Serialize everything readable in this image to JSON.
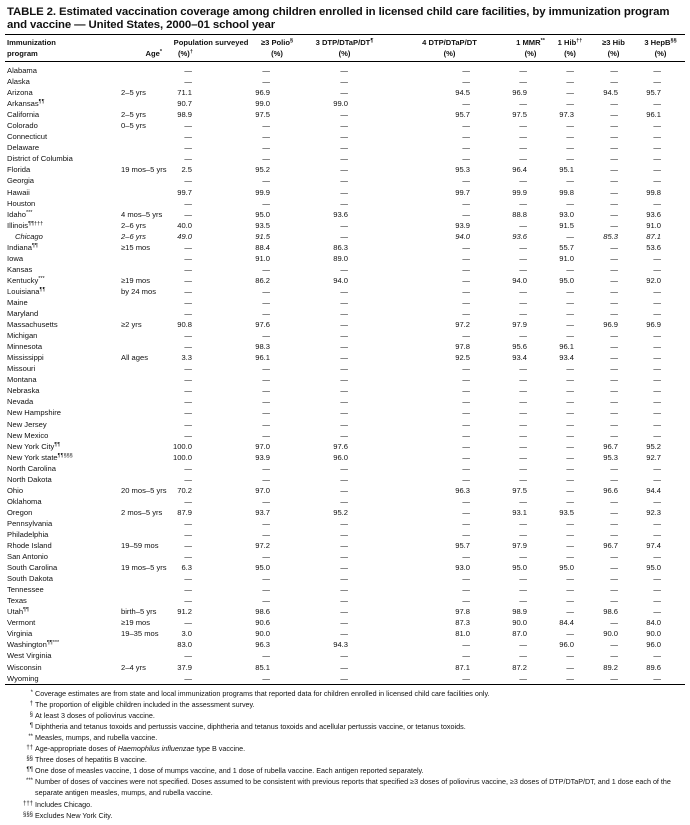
{
  "title": "TABLE 2. Estimated vaccination coverage among children enrolled in licensed child care facilities, by immunization program and vaccine — United States, 2000–01 school year",
  "headers": [
    {
      "l1": "Immunization",
      "l2": "program"
    },
    {
      "l1": "",
      "l2": "Age",
      "sup2": "*"
    },
    {
      "l1": "Population surveyed",
      "l2": "(%)",
      "sup2": "†"
    },
    {
      "l1": "≥3 Polio",
      "sup1": "§",
      "l2": "(%)"
    },
    {
      "l1": "3 DTP/DTaP/DT",
      "sup1": "¶",
      "l2": "(%)"
    },
    {
      "l1": "4 DTP/DTaP/DT",
      "l2": "(%)"
    },
    {
      "l1": "1 MMR",
      "sup1": "**",
      "l2": "(%)"
    },
    {
      "l1": "1 Hib",
      "sup1": "††",
      "l2": "(%)"
    },
    {
      "l1": "≥3 Hib",
      "l2": "(%)"
    },
    {
      "l1": "3 HepB",
      "sup1": "§§",
      "l2": "(%)"
    }
  ],
  "rows": [
    {
      "name": "Alabama",
      "age": "",
      "v": [
        "—",
        "—",
        "—",
        "—",
        "—",
        "—",
        "—",
        "—"
      ]
    },
    {
      "name": "Alaska",
      "age": "",
      "v": [
        "—",
        "—",
        "—",
        "—",
        "—",
        "—",
        "—",
        "—"
      ]
    },
    {
      "name": "Arizona",
      "age": "2–5 yrs",
      "v": [
        "71.1",
        "96.9",
        "—",
        "94.5",
        "96.9",
        "—",
        "94.5",
        "95.7"
      ]
    },
    {
      "name": "Arkansas",
      "sup": "¶¶",
      "age": "",
      "v": [
        "90.7",
        "99.0",
        "99.0",
        "—",
        "—",
        "—",
        "—",
        "—"
      ]
    },
    {
      "name": "California",
      "age": "2–5 yrs",
      "v": [
        "98.9",
        "97.5",
        "—",
        "95.7",
        "97.5",
        "97.3",
        "—",
        "96.1"
      ]
    },
    {
      "name": "Colorado",
      "age": "0–5 yrs",
      "v": [
        "—",
        "—",
        "—",
        "—",
        "—",
        "—",
        "—",
        "—"
      ]
    },
    {
      "name": "Connecticut",
      "age": "",
      "v": [
        "—",
        "—",
        "—",
        "—",
        "—",
        "—",
        "—",
        "—"
      ]
    },
    {
      "name": "Delaware",
      "age": "",
      "v": [
        "—",
        "—",
        "—",
        "—",
        "—",
        "—",
        "—",
        "—"
      ]
    },
    {
      "name": "District of Columbia",
      "age": "",
      "v": [
        "—",
        "—",
        "—",
        "—",
        "—",
        "—",
        "—",
        "—"
      ]
    },
    {
      "name": "Florida",
      "age": "19 mos–5 yrs",
      "v": [
        "2.5",
        "95.2",
        "—",
        "95.3",
        "96.4",
        "95.1",
        "—",
        "—"
      ]
    },
    {
      "name": "Georgia",
      "age": "",
      "v": [
        "—",
        "—",
        "—",
        "—",
        "—",
        "—",
        "—",
        "—"
      ]
    },
    {
      "name": "Hawaii",
      "age": "",
      "v": [
        "99.7",
        "99.9",
        "—",
        "99.7",
        "99.9",
        "99.8",
        "—",
        "99.8"
      ]
    },
    {
      "name": "Houston",
      "age": "",
      "v": [
        "—",
        "—",
        "—",
        "—",
        "—",
        "—",
        "—",
        "—"
      ]
    },
    {
      "name": "Idaho",
      "sup": "***",
      "age": "4 mos–5 yrs",
      "v": [
        "—",
        "95.0",
        "93.6",
        "—",
        "88.8",
        "93.0",
        "—",
        "93.6"
      ]
    },
    {
      "name": "Illinois",
      "sup": "¶¶†††",
      "age": "2–6 yrs",
      "v": [
        "40.0",
        "93.5",
        "—",
        "93.9",
        "—",
        "91.5",
        "—",
        "91.0"
      ]
    },
    {
      "name": "Chicago",
      "italic": true,
      "age": "2–6 yrs",
      "v": [
        "49.0",
        "91.5",
        "—",
        "94.0",
        "93.6",
        "—",
        "85.3",
        "87.1"
      ]
    },
    {
      "name": "Indiana",
      "sup": "¶¶",
      "age": "≥15 mos",
      "v": [
        "—",
        "88.4",
        "86.3",
        "—",
        "—",
        "55.7",
        "—",
        "53.6"
      ]
    },
    {
      "name": "Iowa",
      "age": "",
      "v": [
        "—",
        "91.0",
        "89.0",
        "—",
        "—",
        "91.0",
        "—",
        "—"
      ]
    },
    {
      "name": "Kansas",
      "age": "",
      "v": [
        "—",
        "—",
        "—",
        "—",
        "—",
        "—",
        "—",
        "—"
      ]
    },
    {
      "name": "Kentucky",
      "sup": "***",
      "age": "≥19 mos",
      "v": [
        "—",
        "86.2",
        "94.0",
        "—",
        "94.0",
        "95.0",
        "—",
        "92.0"
      ]
    },
    {
      "name": "Louisiana",
      "sup": "¶¶",
      "age": "by 24 mos",
      "v": [
        "—",
        "—",
        "—",
        "—",
        "—",
        "—",
        "—",
        "—"
      ]
    },
    {
      "name": "Maine",
      "age": "",
      "v": [
        "—",
        "—",
        "—",
        "—",
        "—",
        "—",
        "—",
        "—"
      ]
    },
    {
      "name": "Maryland",
      "age": "",
      "v": [
        "—",
        "—",
        "—",
        "—",
        "—",
        "—",
        "—",
        "—"
      ]
    },
    {
      "name": "Massachusetts",
      "age": "≥2 yrs",
      "v": [
        "90.8",
        "97.6",
        "—",
        "97.2",
        "97.9",
        "—",
        "96.9",
        "96.9"
      ]
    },
    {
      "name": "Michigan",
      "age": "",
      "v": [
        "—",
        "—",
        "—",
        "—",
        "—",
        "—",
        "—",
        "—"
      ]
    },
    {
      "name": "Minnesota",
      "age": "",
      "v": [
        "—",
        "98.3",
        "—",
        "97.8",
        "95.6",
        "96.1",
        "—",
        "—"
      ]
    },
    {
      "name": "Mississippi",
      "age": "All ages",
      "v": [
        "3.3",
        "96.1",
        "—",
        "92.5",
        "93.4",
        "93.4",
        "—",
        "—"
      ]
    },
    {
      "name": "Missouri",
      "age": "",
      "v": [
        "—",
        "—",
        "—",
        "—",
        "—",
        "—",
        "—",
        "—"
      ]
    },
    {
      "name": "Montana",
      "age": "",
      "v": [
        "—",
        "—",
        "—",
        "—",
        "—",
        "—",
        "—",
        "—"
      ]
    },
    {
      "name": "Nebraska",
      "age": "",
      "v": [
        "—",
        "—",
        "—",
        "—",
        "—",
        "—",
        "—",
        "—"
      ]
    },
    {
      "name": "Nevada",
      "age": "",
      "v": [
        "—",
        "—",
        "—",
        "—",
        "—",
        "—",
        "—",
        "—"
      ]
    },
    {
      "name": "New Hampshire",
      "age": "",
      "v": [
        "—",
        "—",
        "—",
        "—",
        "—",
        "—",
        "—",
        "—"
      ]
    },
    {
      "name": "New Jersey",
      "age": "",
      "v": [
        "—",
        "—",
        "—",
        "—",
        "—",
        "—",
        "—",
        "—"
      ]
    },
    {
      "name": "New Mexico",
      "age": "",
      "v": [
        "—",
        "—",
        "—",
        "—",
        "—",
        "—",
        "—",
        "—"
      ]
    },
    {
      "name": "New York City",
      "sup": "¶¶",
      "age": "",
      "v": [
        "100.0",
        "97.0",
        "97.6",
        "—",
        "—",
        "—",
        "96.7",
        "95.2"
      ]
    },
    {
      "name": "New York state",
      "sup": "¶¶§§§",
      "age": "",
      "v": [
        "100.0",
        "93.9",
        "96.0",
        "—",
        "—",
        "—",
        "95.3",
        "92.7"
      ]
    },
    {
      "name": "North Carolina",
      "age": "",
      "v": [
        "—",
        "—",
        "—",
        "—",
        "—",
        "—",
        "—",
        "—"
      ]
    },
    {
      "name": "North Dakota",
      "age": "",
      "v": [
        "—",
        "—",
        "—",
        "—",
        "—",
        "—",
        "—",
        "—"
      ]
    },
    {
      "name": "Ohio",
      "age": "20 mos–5 yrs",
      "v": [
        "70.2",
        "97.0",
        "—",
        "96.3",
        "97.5",
        "—",
        "96.6",
        "94.4"
      ]
    },
    {
      "name": "Oklahoma",
      "age": "",
      "v": [
        "—",
        "—",
        "—",
        "—",
        "—",
        "—",
        "—",
        "—"
      ]
    },
    {
      "name": "Oregon",
      "age": "2 mos–5 yrs",
      "v": [
        "87.9",
        "93.7",
        "95.2",
        "—",
        "93.1",
        "93.5",
        "—",
        "92.3"
      ]
    },
    {
      "name": "Pennsylvania",
      "age": "",
      "v": [
        "—",
        "—",
        "—",
        "—",
        "—",
        "—",
        "—",
        "—"
      ]
    },
    {
      "name": "Philadelphia",
      "age": "",
      "v": [
        "—",
        "—",
        "—",
        "—",
        "—",
        "—",
        "—",
        "—"
      ]
    },
    {
      "name": "Rhode Island",
      "age": "19–59 mos",
      "v": [
        "—",
        "97.2",
        "—",
        "95.7",
        "97.9",
        "—",
        "96.7",
        "97.4"
      ]
    },
    {
      "name": "San Antonio",
      "age": "",
      "v": [
        "—",
        "—",
        "—",
        "—",
        "—",
        "—",
        "—",
        "—"
      ]
    },
    {
      "name": "South Carolina",
      "age": "19 mos–5 yrs",
      "v": [
        "6.3",
        "95.0",
        "—",
        "93.0",
        "95.0",
        "95.0",
        "—",
        "95.0"
      ]
    },
    {
      "name": "South Dakota",
      "age": "",
      "v": [
        "—",
        "—",
        "—",
        "—",
        "—",
        "—",
        "—",
        "—"
      ]
    },
    {
      "name": "Tennessee",
      "age": "",
      "v": [
        "—",
        "—",
        "—",
        "—",
        "—",
        "—",
        "—",
        "—"
      ]
    },
    {
      "name": "Texas",
      "age": "",
      "v": [
        "—",
        "—",
        "—",
        "—",
        "—",
        "—",
        "—",
        "—"
      ]
    },
    {
      "name": "Utah",
      "sup": "¶¶",
      "age": "birth–5 yrs",
      "v": [
        "91.2",
        "98.6",
        "—",
        "97.8",
        "98.9",
        "—",
        "98.6",
        "—"
      ]
    },
    {
      "name": "Vermont",
      "age": "≥19 mos",
      "v": [
        "—",
        "90.6",
        "—",
        "87.3",
        "90.0",
        "84.4",
        "—",
        "84.0"
      ]
    },
    {
      "name": "Virginia",
      "age": "19–35 mos",
      "v": [
        "3.0",
        "90.0",
        "—",
        "81.0",
        "87.0",
        "—",
        "90.0",
        "90.0"
      ]
    },
    {
      "name": "Washington",
      "sup": "¶¶***",
      "age": "",
      "v": [
        "83.0",
        "96.3",
        "94.3",
        "—",
        "—",
        "96.0",
        "—",
        "96.0"
      ]
    },
    {
      "name": "West Virginia",
      "age": "",
      "v": [
        "—",
        "—",
        "—",
        "—",
        "—",
        "—",
        "—",
        "—"
      ]
    },
    {
      "name": "Wisconsin",
      "age": "2–4 yrs",
      "v": [
        "37.9",
        "85.1",
        "—",
        "87.1",
        "87.2",
        "—",
        "89.2",
        "89.6"
      ]
    },
    {
      "name": "Wyoming",
      "age": "",
      "v": [
        "—",
        "—",
        "—",
        "—",
        "—",
        "—",
        "—",
        "—"
      ]
    }
  ],
  "footnotes": [
    {
      "sym": "*",
      "parts": [
        "Coverage estimates are from state and local immunization programs that reported data for children enrolled in licensed child care facilities only."
      ]
    },
    {
      "sym": "†",
      "parts": [
        "The proportion of eligible children included in the assessment survey."
      ]
    },
    {
      "sym": "§",
      "parts": [
        "At least 3 doses of poliovirus vaccine."
      ]
    },
    {
      "sym": "¶",
      "parts": [
        "Diphtheria and tetanus toxoids and pertussis vaccine, diphtheria and tetanus toxoids and acellular pertussis vaccine, or tetanus toxoids."
      ]
    },
    {
      "sym": "**",
      "parts": [
        "Measles, mumps, and rubella vaccine."
      ]
    },
    {
      "sym": "††",
      "parts": [
        "Age-appropriate doses of ",
        "Haemophilus influenzae",
        " type B vaccine."
      ]
    },
    {
      "sym": "§§",
      "parts": [
        "Three doses of hepatitis B vaccine."
      ]
    },
    {
      "sym": "¶¶",
      "parts": [
        "One dose of measles vaccine, 1 dose of mumps vaccine, and 1 dose of rubella vaccine. Each antigen reported separately."
      ]
    },
    {
      "sym": "***",
      "parts": [
        "Number of doses of vaccines were not specified. Doses assumed to be consistent with previous reports that specified ≥3 doses of poliovirus vaccine, ≥3 doses of DTP/DTaP/DT, and 1 dose each of the separate antigen measles, mumps, and rubella vaccine."
      ]
    },
    {
      "sym": "†††",
      "parts": [
        "Includes Chicago."
      ]
    },
    {
      "sym": "§§§",
      "parts": [
        "Excludes New York City."
      ]
    }
  ]
}
